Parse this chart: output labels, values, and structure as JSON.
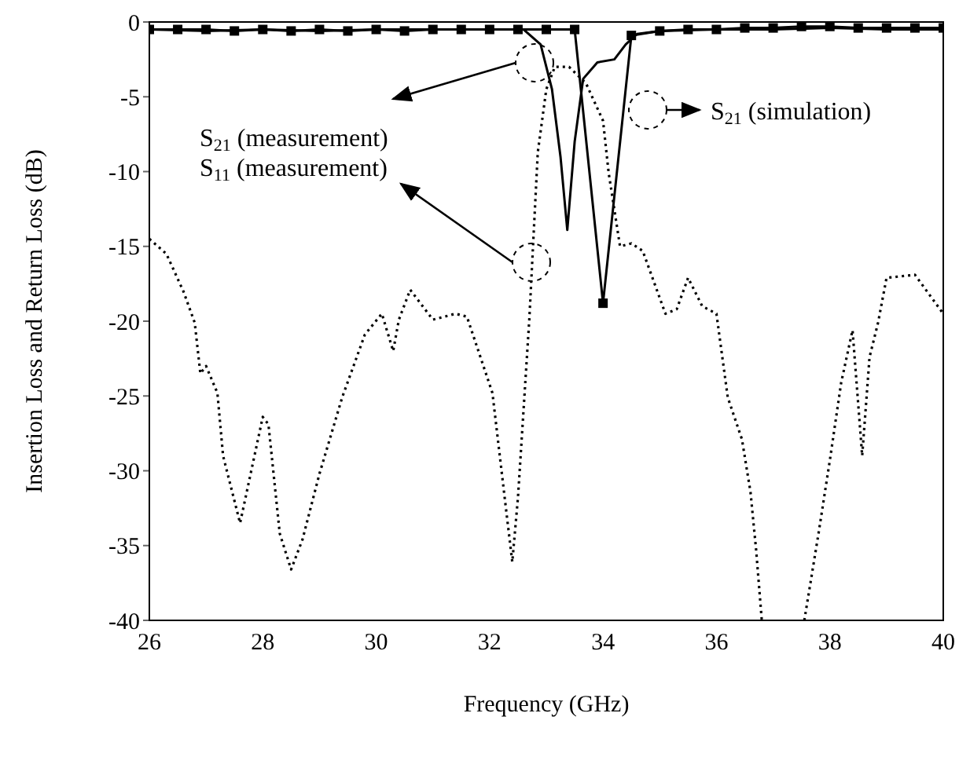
{
  "chart_data": {
    "type": "line",
    "xlabel": "Frequency (GHz)",
    "ylabel": "Insertion Loss and Return Loss (dB)",
    "xlim": [
      26,
      40
    ],
    "xticks": [
      26,
      28,
      30,
      32,
      34,
      36,
      38,
      40
    ],
    "ylim": [
      -40,
      0
    ],
    "yticks": [
      -40,
      -35,
      -30,
      -25,
      -20,
      -15,
      -10,
      -5,
      0
    ],
    "series": [
      {
        "color": "#000000",
        "marker": "none",
        "line_style": "solid",
        "x": [
          26,
          27,
          28,
          29,
          30,
          31,
          32,
          32.6,
          32.9,
          33.1,
          33.25,
          33.37,
          33.5,
          33.65,
          33.9,
          34.2,
          34.4,
          34.6,
          35,
          36,
          37,
          38,
          39,
          40
        ],
        "values": [
          -0.5,
          -0.6,
          -0.5,
          -0.6,
          -0.5,
          -0.5,
          -0.5,
          -0.5,
          -1.5,
          -4.5,
          -9,
          -13.9,
          -8,
          -3.8,
          -2.7,
          -2.5,
          -1.5,
          -0.8,
          -0.6,
          -0.5,
          -0.5,
          -0.4,
          -0.5,
          -0.5
        ]
      },
      {
        "color": "#000000",
        "marker": "square",
        "line_style": "solid",
        "x": [
          26,
          26.5,
          27,
          27.5,
          28,
          28.5,
          29,
          29.5,
          30,
          30.5,
          31,
          31.5,
          32,
          32.5,
          33,
          33.5,
          34,
          34.5,
          35,
          35.5,
          36,
          36.5,
          37,
          37.5,
          38,
          38.5,
          39,
          39.5,
          40
        ],
        "values": [
          -0.5,
          -0.5,
          -0.5,
          -0.6,
          -0.5,
          -0.6,
          -0.5,
          -0.6,
          -0.5,
          -0.6,
          -0.5,
          -0.5,
          -0.5,
          -0.5,
          -0.5,
          -0.5,
          -18.8,
          -0.9,
          -0.6,
          -0.5,
          -0.5,
          -0.4,
          -0.4,
          -0.3,
          -0.3,
          -0.4,
          -0.4,
          -0.4,
          -0.4
        ]
      },
      {
        "color": "#000000",
        "marker": "none",
        "line_style": "dotted",
        "x": [
          26,
          26.3,
          26.6,
          26.8,
          26.9,
          27,
          27.2,
          27.3,
          27.6,
          28,
          28.1,
          28.3,
          28.5,
          28.7,
          29,
          29.4,
          29.8,
          30.1,
          30.3,
          30.4,
          30.6,
          31,
          31.4,
          31.6,
          32.05,
          32.3,
          32.4,
          32.5,
          32.7,
          32.85,
          33,
          33.15,
          33.4,
          33.7,
          34,
          34.1,
          34.3,
          34.5,
          34.7,
          35.1,
          35.3,
          35.5,
          35.75,
          36,
          36.2,
          36.45,
          36.6,
          36.7,
          36.8,
          37.2,
          37.55,
          37.8,
          38,
          38.2,
          38.4,
          38.57,
          38.7,
          38.85,
          39,
          39.5,
          40
        ],
        "values": [
          -14.5,
          -15.5,
          -18,
          -20.1,
          -23.5,
          -23,
          -24.8,
          -29,
          -33.5,
          -26.4,
          -26.9,
          -34.2,
          -36.6,
          -34.6,
          -30.2,
          -25.1,
          -20.9,
          -19.5,
          -22,
          -19.9,
          -17.9,
          -19.9,
          -19.5,
          -19.7,
          -24.8,
          -32.9,
          -36.1,
          -31.8,
          -19.9,
          -8.7,
          -4.5,
          -3,
          -3,
          -4.1,
          -6.6,
          -10.1,
          -15,
          -14.8,
          -15.3,
          -19.5,
          -19.2,
          -17.1,
          -19,
          -19.5,
          -25.1,
          -27.9,
          -31.4,
          -35.3,
          -40,
          null,
          -40,
          -34.2,
          -29.3,
          -24.1,
          -20.6,
          -29,
          -22.4,
          -20.1,
          -17.1,
          -16.9,
          -19.5
        ]
      }
    ],
    "annotations": [
      "S$_{21}$ (measurement)",
      "S$_{11}$ (measurement)",
      "S$_{21}$ (simulation)"
    ]
  }
}
